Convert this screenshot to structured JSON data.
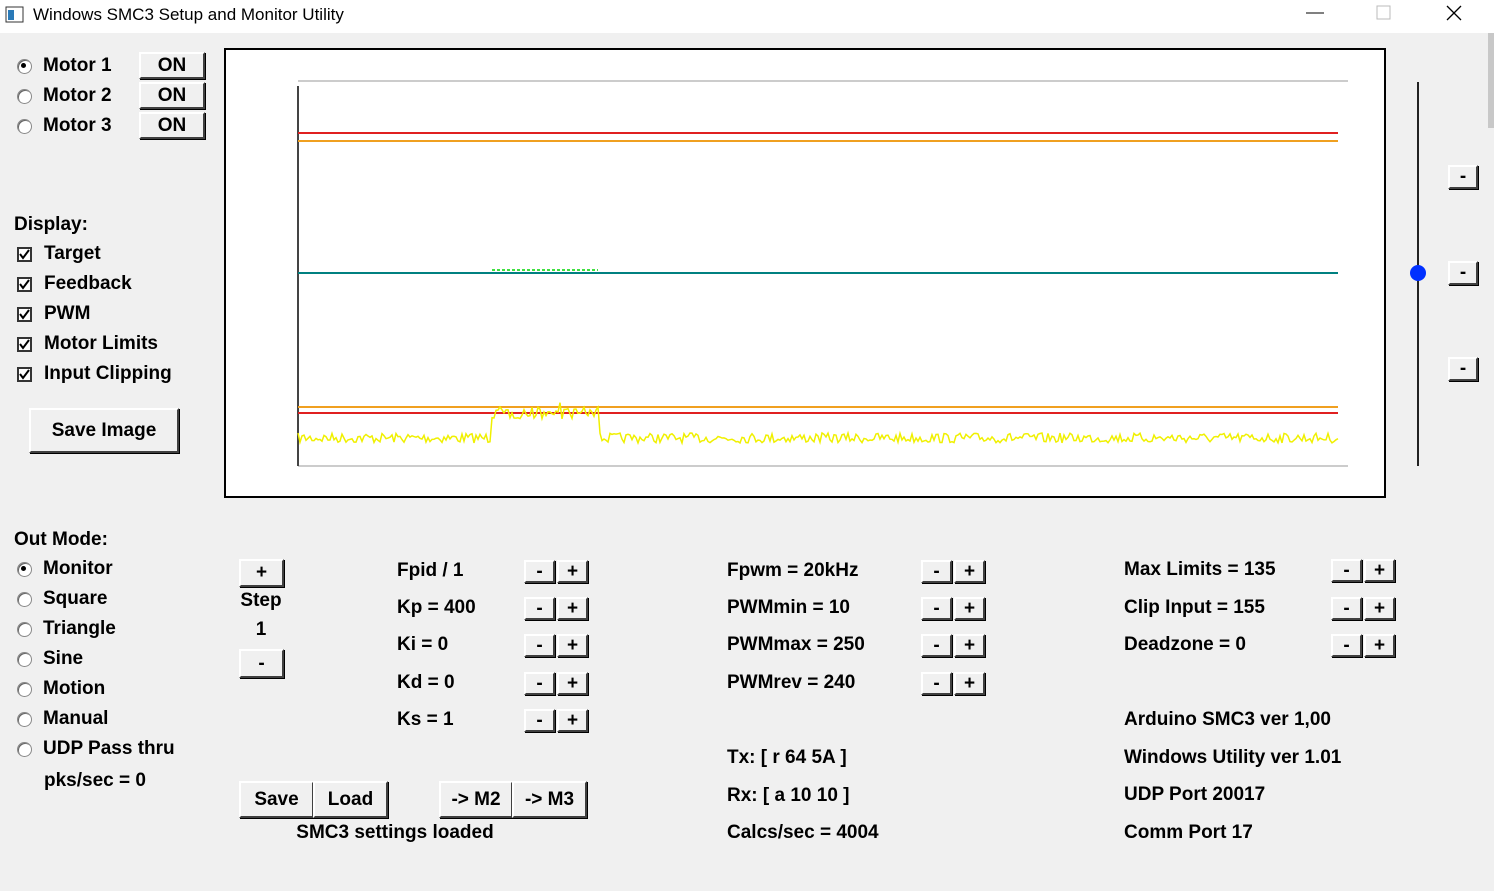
{
  "window": {
    "title": "Windows SMC3 Setup and Monitor Utility"
  },
  "buttons": {
    "minus": "-",
    "plus": "+"
  },
  "motors": [
    {
      "label": "Motor 1",
      "button": "ON",
      "selected": true
    },
    {
      "label": "Motor 2",
      "button": "ON",
      "selected": false
    },
    {
      "label": "Motor 3",
      "button": "ON",
      "selected": false
    }
  ],
  "display": {
    "heading": "Display:",
    "options": [
      {
        "label": "Target",
        "checked": true
      },
      {
        "label": "Feedback",
        "checked": true
      },
      {
        "label": "PWM",
        "checked": true
      },
      {
        "label": "Motor Limits",
        "checked": true
      },
      {
        "label": "Input Clipping",
        "checked": true
      }
    ]
  },
  "save_image": "Save Image",
  "out_mode": {
    "heading": "Out Mode:",
    "options": [
      {
        "label": "Monitor",
        "selected": true
      },
      {
        "label": "Square",
        "selected": false
      },
      {
        "label": "Triangle",
        "selected": false
      },
      {
        "label": "Sine",
        "selected": false
      },
      {
        "label": "Motion",
        "selected": false
      },
      {
        "label": "Manual",
        "selected": false
      },
      {
        "label": "UDP Pass thru",
        "selected": false
      }
    ],
    "rate": "pks/sec = 0"
  },
  "step": {
    "label": "Step",
    "value": "1"
  },
  "pid_params": [
    "Fpid / 1",
    "Kp = 400",
    "Ki = 0",
    "Kd = 0",
    "Ks = 1"
  ],
  "pwm_params": [
    "Fpwm = 20kHz",
    "PWMmin = 10",
    "PWMmax = 250",
    "PWMrev = 240"
  ],
  "limit_params": [
    "Max Limits = 135",
    "Clip Input = 155",
    "Deadzone = 0"
  ],
  "comm": [
    "Tx: [ r 64 5A ]",
    "Rx: [ a 10 10 ]",
    "Calcs/sec = 4004"
  ],
  "info": [
    "Arduino SMC3 ver 1,00",
    "Windows Utility ver 1.01",
    "UDP Port 20017",
    "Comm Port 17"
  ],
  "profile_buttons": [
    "Save",
    "Load",
    "-> M2",
    "-> M3"
  ],
  "status": "SMC3 settings loaded"
}
